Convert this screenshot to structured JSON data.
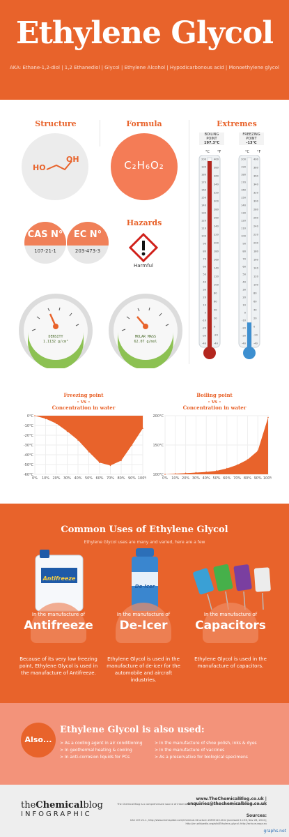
{
  "header": {
    "title": "Ethylene Glycol",
    "aka": "AKA: Ethane-1,2-diol | 1,2 Ethanediol | Glycol | Ethylene Alcohol | Hypodicarbonous acid | Monoethylene glycol"
  },
  "structure": {
    "heading": "Structure",
    "left_label": "HO",
    "right_label": "OH"
  },
  "formula": {
    "heading": "Formula",
    "text": "C₂H₆O₂"
  },
  "identifiers": {
    "cas": {
      "label": "CAS N°",
      "value": "107-21-1"
    },
    "ec": {
      "label": "EC N°",
      "value": "203-473-3"
    }
  },
  "hazards": {
    "heading": "Hazards",
    "label": "Harmful"
  },
  "gauges": {
    "density": {
      "label": "DENSITY",
      "value": "1.1132 g/cm³",
      "ticks": [
        "0",
        "0.5",
        "1",
        "1.5",
        "2",
        "2.5",
        "3",
        "3.5"
      ]
    },
    "molar_mass": {
      "label": "MOLAR MASS",
      "value": "62.07 g/mol",
      "ticks": [
        "0",
        "20",
        "40",
        "60",
        "80",
        "100",
        "120",
        "140",
        "160"
      ]
    }
  },
  "extremes": {
    "heading": "Extremes",
    "boiling": {
      "label": "BOILING POINT",
      "value": "197.3°C",
      "celsius": 197.3
    },
    "freezing": {
      "label": "FREEZING POINT",
      "value": "-13°C",
      "celsius": -13
    },
    "unit_c": "°C",
    "unit_f": "°F",
    "c_ticks": [
      "200",
      "190",
      "180",
      "170",
      "160",
      "150",
      "140",
      "130",
      "120",
      "110",
      "100",
      "90",
      "80",
      "70",
      "60",
      "50",
      "40",
      "30",
      "20",
      "10",
      "0",
      "-10",
      "-20",
      "-30",
      "-40"
    ],
    "f_ticks": [
      "400",
      "380",
      "360",
      "340",
      "320",
      "300",
      "280",
      "260",
      "240",
      "220",
      "200",
      "180",
      "160",
      "140",
      "120",
      "100",
      "80",
      "60",
      "40",
      "20",
      "0",
      "-20",
      "-40"
    ],
    "colors": {
      "boiling": "#b3261e",
      "freezing": "#3d8fd0"
    }
  },
  "charts": {
    "freezing_title_1": "Freezing point",
    "freezing_title_2": "- vs -",
    "freezing_title_3": "Concentration in water",
    "boiling_title_1": "Boiling point",
    "boiling_title_2": "- vs -",
    "boiling_title_3": "Concentration in water"
  },
  "chart_data": [
    {
      "type": "area",
      "title": "Freezing point - vs - Concentration in water",
      "x_tick_labels": [
        "0%",
        "10%",
        "20%",
        "30%",
        "40%",
        "50%",
        "60%",
        "70%",
        "80%",
        "90%",
        "100%"
      ],
      "y_tick_labels": [
        "0°C",
        "-10°C",
        "-20°C",
        "-30°C",
        "-40°C",
        "-50°C",
        "-60°C"
      ],
      "ylim": [
        -60,
        0
      ],
      "x": [
        0,
        10,
        20,
        30,
        40,
        50,
        60,
        70,
        80,
        90,
        100
      ],
      "values": [
        0,
        -3,
        -8,
        -16,
        -25,
        -37,
        -48,
        -51,
        -46,
        -30,
        -13
      ],
      "grid": true,
      "color": "#e8632b"
    },
    {
      "type": "area",
      "title": "Boiling point - vs - Concentration in water",
      "x_tick_labels": [
        "0%",
        "10%",
        "20%",
        "30%",
        "40%",
        "50%",
        "60%",
        "70%",
        "80%",
        "90%",
        "100%"
      ],
      "y_tick_labels": [
        "200°C",
        "150°C",
        "100°C"
      ],
      "ylim": [
        100,
        200
      ],
      "x": [
        0,
        10,
        20,
        30,
        40,
        50,
        60,
        70,
        80,
        90,
        100
      ],
      "values": [
        100,
        101,
        102,
        103,
        104,
        106,
        110,
        116,
        125,
        140,
        197
      ],
      "grid": true,
      "color": "#e8632b"
    }
  ],
  "uses": {
    "title": "Common Uses of Ethylene Glycol",
    "subtitle": "Ethylene Glycol uses are many and varied, here are a few",
    "antifreeze_brand": "Antifreeze",
    "deicer_brand": "De-Icer",
    "items": [
      {
        "prefix": "In the manufacture of",
        "name": "Antifreeze",
        "desc": "Because of its very low freezing point, Ethylene Glycol is used in the manufacture of Antifreeze."
      },
      {
        "prefix": "In the manufacture of",
        "name": "De-Icer",
        "desc": "Ethylene Glycol is used in the manufacture of de-icer for the automobile and aircraft industries."
      },
      {
        "prefix": "In the manufacture of",
        "name": "Capacitors",
        "desc": "Ethylene Glycol is used in the manufacture of capacitors."
      }
    ]
  },
  "also": {
    "badge": "Also...",
    "title": "Ethylene Glycol is also used:",
    "left": [
      "> As a cooling agent in air conditioning",
      "> In geothermal heating & cooling",
      "> In anti-corrosion liquids for PCs"
    ],
    "right": [
      "> In the manufacture of shoe polish, inks & dyes",
      "> In the manufacture of vaccines",
      "> As a preservative for biological specimens"
    ]
  },
  "footer": {
    "logo_prefix": "the",
    "logo_main": "Chemical",
    "logo_suffix": "blog",
    "logo_sub": "INFOGRAPHIC",
    "contact": "www.TheChemicalBlog.co.uk | enquiries@thechemicalblog.co.uk",
    "blurb": "The Chemical Blog is a comprehensive source of information and news on chemicals, chemistry and the chemical industry",
    "sources_heading": "Sources:",
    "sources": "CAS 107-21-1, http://www.chemspider.com/Chemical-Structure.13835110.html (accessed 11:56, Nov 28, 2012); http://en.wikipedia.org/wiki/Ethylene_glycol; http://echa.europa.eu",
    "watermark": "graphs.net"
  }
}
